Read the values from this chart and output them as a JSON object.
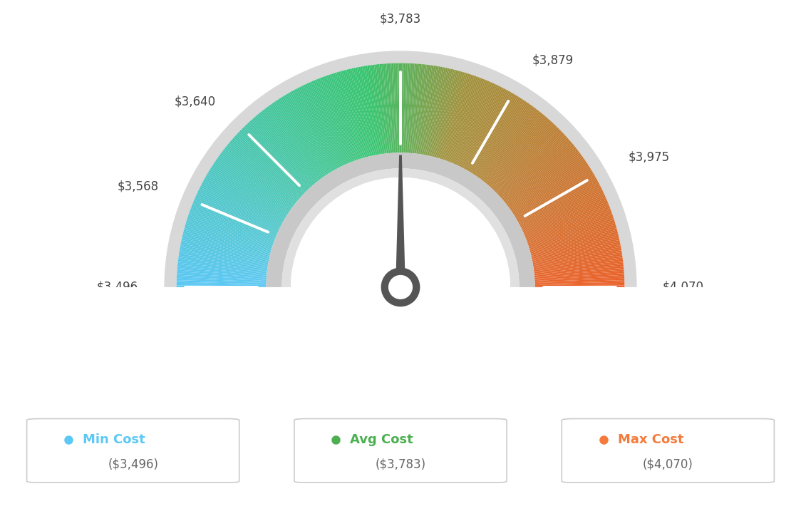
{
  "min_val": 3496,
  "max_val": 4070,
  "avg_val": 3783,
  "tick_labels": [
    "$3,496",
    "$3,568",
    "$3,640",
    "$3,783",
    "$3,879",
    "$3,975",
    "$4,070"
  ],
  "tick_values": [
    3496,
    3568,
    3640,
    3783,
    3879,
    3975,
    4070
  ],
  "legend_labels": [
    "Min Cost",
    "Avg Cost",
    "Max Cost"
  ],
  "legend_values": [
    "($3,496)",
    "($3,783)",
    "($4,070)"
  ],
  "legend_dot_colors": [
    "#5bc8f5",
    "#4caf50",
    "#f47b3b"
  ],
  "legend_label_colors": [
    "#5bc8f5",
    "#4caf50",
    "#f47b3b"
  ],
  "legend_value_color": "#666666",
  "background_color": "#ffffff",
  "needle_color": "#555555",
  "gauge_outer": 1.0,
  "gauge_inner": 0.6,
  "color_stops": [
    [
      0.0,
      [
        91,
        200,
        245
      ]
    ],
    [
      0.5,
      [
        72,
        185,
        120
      ]
    ],
    [
      0.65,
      [
        180,
        140,
        80
      ]
    ],
    [
      1.0,
      [
        235,
        100,
        45
      ]
    ]
  ]
}
